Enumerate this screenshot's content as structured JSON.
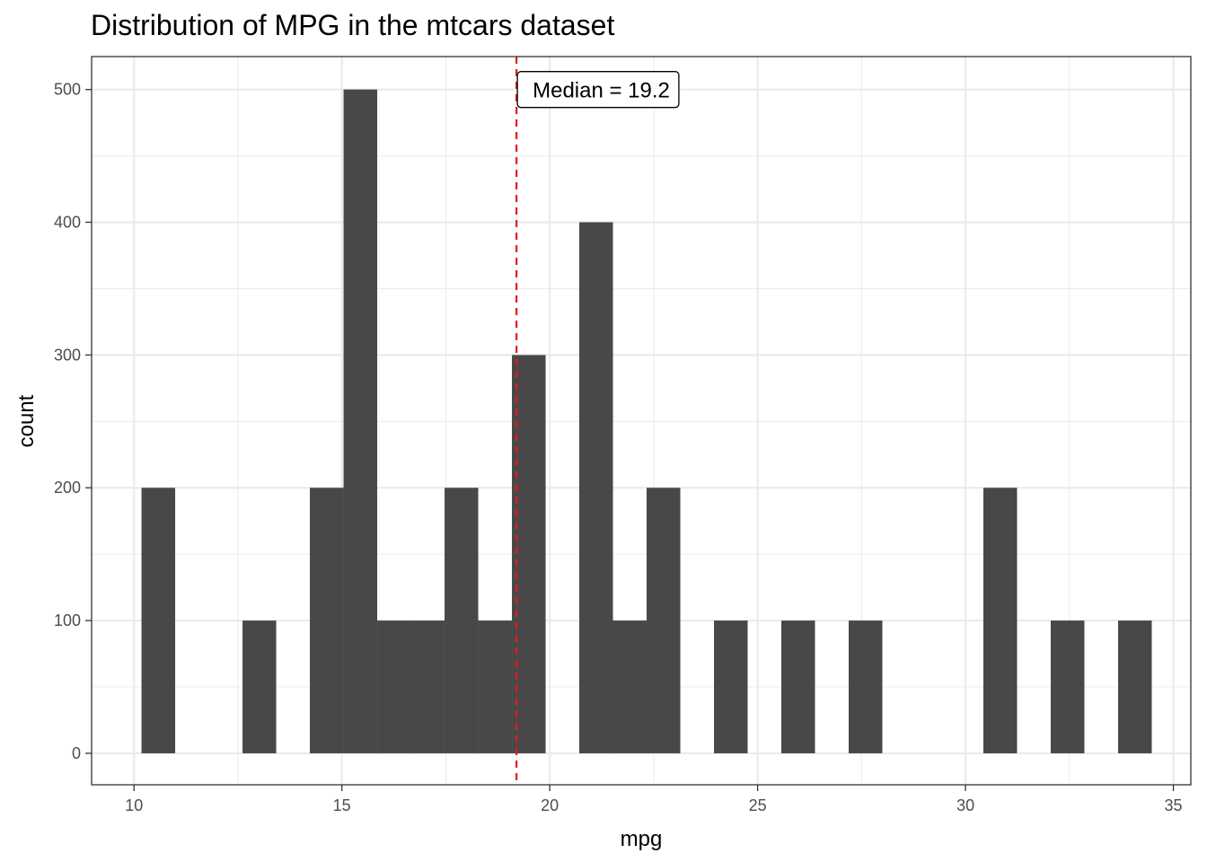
{
  "chart_data": {
    "type": "bar",
    "title": "Distribution of MPG in the mtcars dataset",
    "xlabel": "mpg",
    "ylabel": "count",
    "xlim": [
      8.98,
      35.42
    ],
    "ylim": [
      -23.7,
      524.8
    ],
    "x_ticks": [
      10,
      15,
      20,
      25,
      30,
      35
    ],
    "y_ticks": [
      0,
      100,
      200,
      300,
      400,
      500
    ],
    "x_tick_labels": [
      "10",
      "15",
      "20",
      "25",
      "30",
      "35"
    ],
    "y_tick_labels": [
      "0",
      "100",
      "200",
      "300",
      "400",
      "500"
    ],
    "grid": true,
    "bin_width": 0.81,
    "bins": [
      {
        "x0": 10.18,
        "x1": 10.99,
        "count": 200
      },
      {
        "x0": 12.61,
        "x1": 13.42,
        "count": 100
      },
      {
        "x0": 14.23,
        "x1": 15.04,
        "count": 200
      },
      {
        "x0": 15.04,
        "x1": 15.85,
        "count": 500
      },
      {
        "x0": 15.85,
        "x1": 16.66,
        "count": 100
      },
      {
        "x0": 16.66,
        "x1": 17.47,
        "count": 100
      },
      {
        "x0": 17.47,
        "x1": 18.28,
        "count": 200
      },
      {
        "x0": 18.28,
        "x1": 19.09,
        "count": 100
      },
      {
        "x0": 19.09,
        "x1": 19.9,
        "count": 300
      },
      {
        "x0": 20.71,
        "x1": 21.52,
        "count": 400
      },
      {
        "x0": 21.52,
        "x1": 22.33,
        "count": 100
      },
      {
        "x0": 22.33,
        "x1": 23.14,
        "count": 200
      },
      {
        "x0": 23.95,
        "x1": 24.76,
        "count": 100
      },
      {
        "x0": 25.57,
        "x1": 26.38,
        "count": 100
      },
      {
        "x0": 27.19,
        "x1": 28.0,
        "count": 100
      },
      {
        "x0": 30.43,
        "x1": 31.24,
        "count": 200
      },
      {
        "x0": 32.05,
        "x1": 32.86,
        "count": 100
      },
      {
        "x0": 33.67,
        "x1": 34.48,
        "count": 100
      }
    ],
    "median_line": {
      "x": 19.2,
      "color": "#e41a1c",
      "style": "dashed"
    },
    "annotation": {
      "text": "Median = 19.2",
      "x": 19.2,
      "y": 500
    },
    "bar_color": "#484848"
  }
}
